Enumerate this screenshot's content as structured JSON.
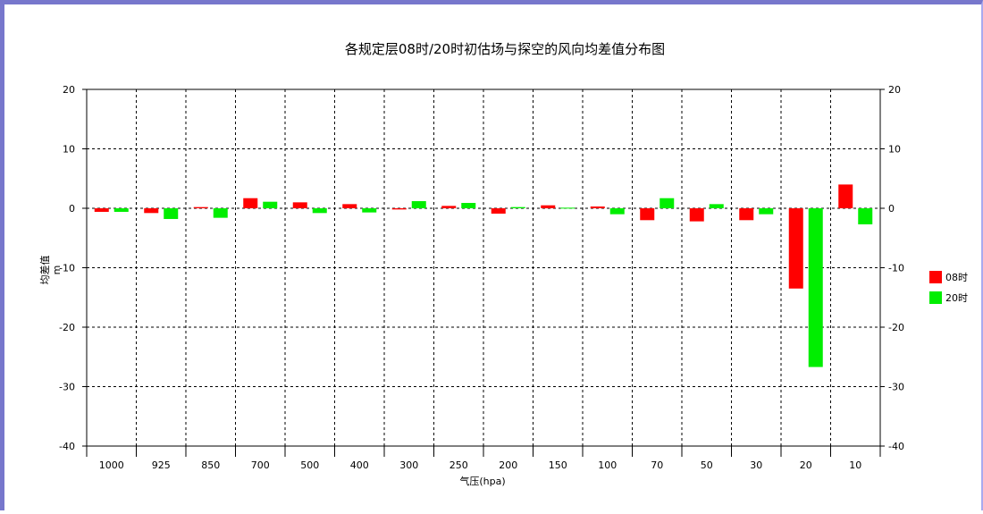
{
  "chart_data": {
    "type": "bar",
    "title": "各规定层08时/20时初估场与探空的风向均差值分布图",
    "xlabel": "气压(hpa)",
    "ylabel": "均差值",
    "ylabel_unit": "m",
    "categories": [
      "1000",
      "925",
      "850",
      "700",
      "500",
      "400",
      "300",
      "250",
      "200",
      "150",
      "100",
      "70",
      "50",
      "30",
      "20",
      "10"
    ],
    "series": [
      {
        "name": "08时",
        "color": "#ff0000",
        "values": [
          -0.6,
          -0.8,
          0.2,
          1.7,
          1.0,
          0.7,
          -0.2,
          0.4,
          -0.9,
          0.5,
          0.3,
          -2.0,
          -2.2,
          -2.0,
          -13.5,
          4.0
        ]
      },
      {
        "name": "20时",
        "color": "#00ee00",
        "values": [
          -0.6,
          -1.8,
          -1.6,
          1.1,
          -0.8,
          -0.7,
          1.2,
          0.9,
          0.2,
          0.1,
          -1.0,
          1.7,
          0.7,
          -1.0,
          -26.7,
          -2.7
        ]
      }
    ],
    "ylim": [
      -40,
      20
    ],
    "yticks": [
      20,
      10,
      0,
      -10,
      -20,
      -30,
      -40
    ],
    "grid": true,
    "legend": "right"
  }
}
